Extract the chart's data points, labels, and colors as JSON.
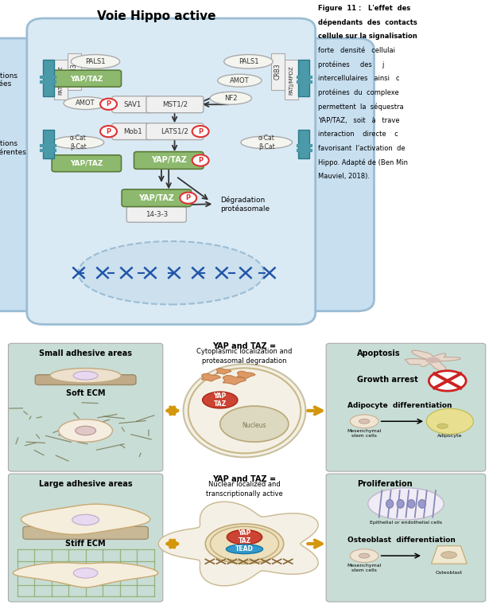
{
  "top_title": "Voie Hippo active",
  "fig11_caption_bold": "Figure  11 :   L'effet  des\ndépendants  des  contacts\ncellule sur la signalisation",
  "fig11_caption_normal": "forte   densité   cellulai\nprotéines     des     j\nintercellulaires   ainsi   c\nprotéines  du  complexe\npermettent  la  séquestra\nYAP/TAZ,   soit   à   trave\ninteraction    directe    c\nfavorisant  l'activation  de\nHippo. Adapté de (Ben Min\nMauviel, 2018).",
  "bg_color": "#ffffff",
  "cell_fill": "#daeaf5",
  "cell_border": "#9bbdd4",
  "cell_outer_fill": "#c8dff0",
  "nucleus_fill": "#cce0ee",
  "nucleus_border": "#9bbdd4",
  "box_green_fill": "#8db96e",
  "box_green_border": "#5a7a3a",
  "box_green_text": "#ffffff",
  "box_gray_fill": "#f0f0f0",
  "box_gray_border": "#aaaaaa",
  "box_gray_text": "#333333",
  "oval_fill": "#f5f5f0",
  "oval_border": "#aaaaaa",
  "junction_bar_fill": "#4a9aaa",
  "junction_bar_border": "#2a7a8a",
  "phospho_fill": "#ffffff",
  "phospho_border": "#dd3333",
  "phospho_text": "#dd3333",
  "arrow_dark": "#333333",
  "bottom_left_bg": "#c8ddd5",
  "bottom_right_bg": "#c8ddd5",
  "arrow_gold": "#d4960a",
  "cell_top_fill": "#f5f0e8",
  "cell_top_border": "#c8b890",
  "nucleus_top_fill": "#e8d8f0",
  "nucleus_top_border": "#c0a8c8",
  "cell_stiff_fill": "#f5eedc",
  "cell_stiff_border": "#c8a870",
  "grid_color": "#88aa66",
  "soft_line_color": "#888888",
  "red_x_color": "#cc2222",
  "adipocyte_fill": "#e8e090",
  "adipocyte_border": "#b8a840",
  "small_adhesive_title": "Small adhesive areas",
  "soft_ecm_label": "Soft ECM",
  "large_adhesive_title": "Large adhesive areas",
  "stiff_ecm_label": "Stiff ECM",
  "yap_taz_top_title": "YAP and TAZ =",
  "yap_taz_top_sub": "Cytoplasmic localization and\nproteasomal degradation",
  "yap_taz_bot_title": "YAP and TAZ =",
  "yap_taz_bot_sub": "Nuclear localized and\ntranscriptionally active",
  "nucleus_label": "Nucleus",
  "yap_taz_label": "YAP\nTAZ",
  "tead_label": "TEAD",
  "apoptosis_label": "Apoptosis",
  "growth_arrest_label": "Growth arrest",
  "adipocyte_diff_label": "Adipocyte  differentiation",
  "mesenchymal_label": "Mesenchymal\nstem cells",
  "adipocyte_label": "Adipocyte",
  "proliferation_label": "Proliferation",
  "epithelial_label": "Epithelial or endothelial cells",
  "osteoblast_diff_label": "Osteoblast  differentiation",
  "mesenchymal2_label": "Mesenchymal\nstem cells",
  "osteoblast_label": "Osteoblast"
}
